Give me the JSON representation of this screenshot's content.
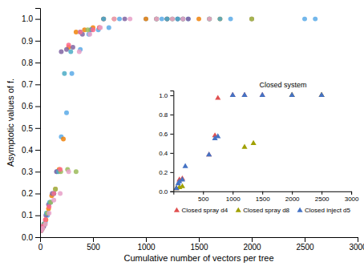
{
  "chart_data": [
    {
      "type": "scatter",
      "xlabel": "Cumulative number of vectors per tree",
      "ylabel": "Asymptotic values of f.",
      "xlim": [
        0,
        3000
      ],
      "ylim": [
        0,
        1.05
      ],
      "xticks": [
        0,
        500,
        1000,
        1500,
        2000,
        2500,
        3000
      ],
      "yticks": [
        {
          "value": 0,
          "label": "0.0"
        },
        0.1,
        0.2,
        0.3,
        0.4,
        0.5,
        0.6,
        0.7,
        0.8,
        0.9,
        {
          "value": 1.0,
          "label": "1.0"
        }
      ],
      "grid": false,
      "series": [
        {
          "color": "#5baae8",
          "marker": "circle",
          "x": [
            10,
            20,
            30,
            50,
            70,
            100,
            130,
            160,
            200,
            250,
            300,
            380,
            460,
            550,
            650,
            750,
            1000,
            1100,
            1150,
            1200,
            1250,
            1300,
            1350,
            1400,
            1600,
            1800,
            2000,
            2500,
            2600
          ],
          "values": [
            0.03,
            0.04,
            0.05,
            0.07,
            0.1,
            0.16,
            0.2,
            0.3,
            0.46,
            0.57,
            0.75,
            0.86,
            0.93,
            0.95,
            0.96,
            1.0,
            1.0,
            1.0,
            1.0,
            1.0,
            1.0,
            1.0,
            1.0,
            1.0,
            1.0,
            1.0,
            1.0,
            1.0,
            1.0
          ]
        },
        {
          "color": "#f0820a",
          "marker": "circle",
          "x": [
            10,
            20,
            35,
            55,
            80,
            110,
            145,
            180,
            220,
            270,
            340,
            420,
            500,
            600,
            700,
            1000,
            1200,
            1350,
            1500,
            1700,
            2000
          ],
          "values": [
            0.03,
            0.04,
            0.06,
            0.08,
            0.13,
            0.19,
            0.22,
            0.31,
            0.45,
            0.87,
            0.94,
            0.95,
            0.96,
            1.0,
            1.0,
            1.0,
            1.0,
            1.0,
            1.0,
            1.0,
            1.0
          ]
        },
        {
          "color": "#8064a2",
          "marker": "circle",
          "x": [
            10,
            20,
            35,
            55,
            80,
            115,
            155,
            200,
            250,
            310,
            400,
            480,
            600,
            800,
            1100,
            1200,
            1300,
            1400
          ],
          "values": [
            0.03,
            0.04,
            0.05,
            0.1,
            0.15,
            0.2,
            0.3,
            0.85,
            0.86,
            0.87,
            0.93,
            0.95,
            1.0,
            1.0,
            1.0,
            1.0,
            1.0,
            1.0
          ]
        },
        {
          "color": "#4bacc6",
          "marker": "circle",
          "x": [
            10,
            20,
            35,
            60,
            90,
            130,
            175,
            230,
            290,
            380,
            480,
            600,
            1200,
            1300,
            1350,
            1600,
            1700
          ],
          "values": [
            0.03,
            0.04,
            0.06,
            0.11,
            0.16,
            0.2,
            0.3,
            0.75,
            0.85,
            0.94,
            0.95,
            1.0,
            1.0,
            1.0,
            1.0,
            1.0,
            1.0
          ]
        },
        {
          "color": "#9bbb59",
          "marker": "circle",
          "x": [
            10,
            25,
            45,
            70,
            100,
            145,
            195,
            260,
            340,
            450,
            560,
            1100,
            1250,
            1600,
            2000
          ],
          "values": [
            0.03,
            0.04,
            0.06,
            0.11,
            0.16,
            0.22,
            0.3,
            0.31,
            0.3,
            0.95,
            0.96,
            1.0,
            1.0,
            1.0,
            1.0
          ]
        },
        {
          "color": "#ff6688",
          "marker": "circle",
          "x": [
            10,
            25,
            50,
            85,
            130,
            190,
            270,
            380,
            500,
            560
          ],
          "values": [
            0.03,
            0.05,
            0.08,
            0.14,
            0.2,
            0.31,
            0.88,
            0.94,
            0.95,
            0.96
          ]
        },
        {
          "color": "#e8a0c8",
          "marker": "circle",
          "x": [
            10,
            25,
            50,
            85,
            130,
            190,
            270,
            370,
            470,
            570,
            700,
            850,
            1100,
            1250,
            1350,
            1600
          ],
          "values": [
            0.03,
            0.04,
            0.06,
            0.11,
            0.17,
            0.2,
            0.3,
            0.85,
            0.93,
            0.96,
            1.0,
            1.0,
            1.0,
            1.0,
            1.0,
            1.0
          ]
        }
      ]
    },
    {
      "type": "scatter",
      "title": "Closed system",
      "xlim": [
        0,
        3000
      ],
      "ylim": [
        0,
        1.05
      ],
      "xticks": [
        500,
        1000,
        1500,
        2000,
        2500,
        3000
      ],
      "yticks": [
        {
          "value": 0.0,
          "label": "0.0"
        },
        0.2,
        0.4,
        0.6,
        0.8,
        {
          "value": 1.0,
          "label": "1.0"
        }
      ],
      "grid": false,
      "legend": "bottom",
      "series": [
        {
          "name": "Closed spray d4",
          "color": "#e05050",
          "marker": "triangle",
          "x": [
            50,
            100,
            150,
            600,
            700,
            750,
            1000,
            1200,
            1500,
            2000,
            2500
          ],
          "values": [
            0.03,
            0.12,
            0.13,
            0.38,
            0.58,
            0.97,
            1.0,
            1.0,
            1.0,
            1.0,
            1.0
          ]
        },
        {
          "name": "Closed spray d8",
          "color": "#a0a000",
          "marker": "triangle",
          "x": [
            50,
            100,
            150,
            1200,
            1350,
            2000,
            2500
          ],
          "values": [
            0.03,
            0.04,
            0.05,
            0.46,
            0.5,
            1.0,
            1.0
          ]
        },
        {
          "name": "Closed inject d5",
          "color": "#4472c4",
          "marker": "triangle",
          "x": [
            50,
            80,
            100,
            150,
            200,
            600,
            700,
            750,
            1000,
            1200,
            1500,
            2000,
            2500
          ],
          "values": [
            0.03,
            0.08,
            0.1,
            0.12,
            0.26,
            0.38,
            0.55,
            0.57,
            1.0,
            1.0,
            1.0,
            1.0,
            1.0
          ]
        }
      ]
    }
  ]
}
